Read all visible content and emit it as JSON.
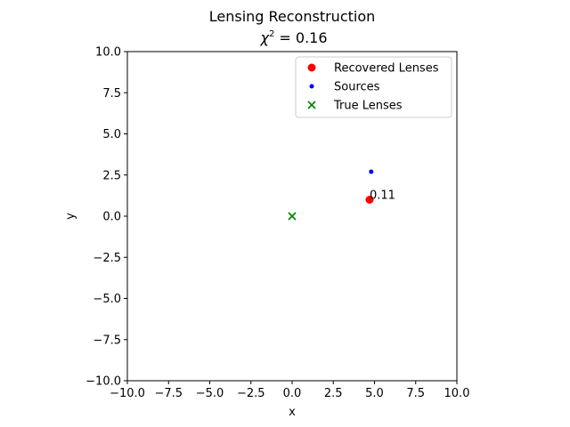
{
  "chart_data": {
    "type": "scatter",
    "title_line1": "Lensing Reconstruction",
    "title_line2_prefix": "χ",
    "title_line2_sup": "2",
    "title_line2_suffix": " = 0.16",
    "xlabel": "x",
    "ylabel": "y",
    "xlim": [
      -10,
      10
    ],
    "ylim": [
      -10,
      10
    ],
    "xticks": [
      -10,
      -7.5,
      -5,
      -2.5,
      0,
      2.5,
      5,
      7.5,
      10
    ],
    "yticks": [
      -10,
      -7.5,
      -5,
      -2.5,
      0,
      2.5,
      5,
      7.5,
      10
    ],
    "xtick_labels": [
      "−10.0",
      "−7.5",
      "−5.0",
      "−2.5",
      "0.0",
      "2.5",
      "5.0",
      "7.5",
      "10.0"
    ],
    "ytick_labels": [
      "−10.0",
      "−7.5",
      "−5.0",
      "−2.5",
      "0.0",
      "2.5",
      "5.0",
      "7.5",
      "10.0"
    ],
    "grid": false,
    "legend_position": "top-right",
    "series": [
      {
        "name": "Recovered Lenses",
        "marker": "circle",
        "color": "#ff0000",
        "points": [
          {
            "x": 4.7,
            "y": 1.0
          }
        ]
      },
      {
        "name": "Sources",
        "marker": "dot",
        "color": "#0000ff",
        "points": [
          {
            "x": 4.8,
            "y": 2.7
          }
        ]
      },
      {
        "name": "True Lenses",
        "marker": "x",
        "color": "#008000",
        "points": [
          {
            "x": 0.0,
            "y": 0.0
          }
        ]
      }
    ],
    "annotations": [
      {
        "text": "0.11",
        "x": 4.7,
        "y": 1.0
      }
    ]
  }
}
